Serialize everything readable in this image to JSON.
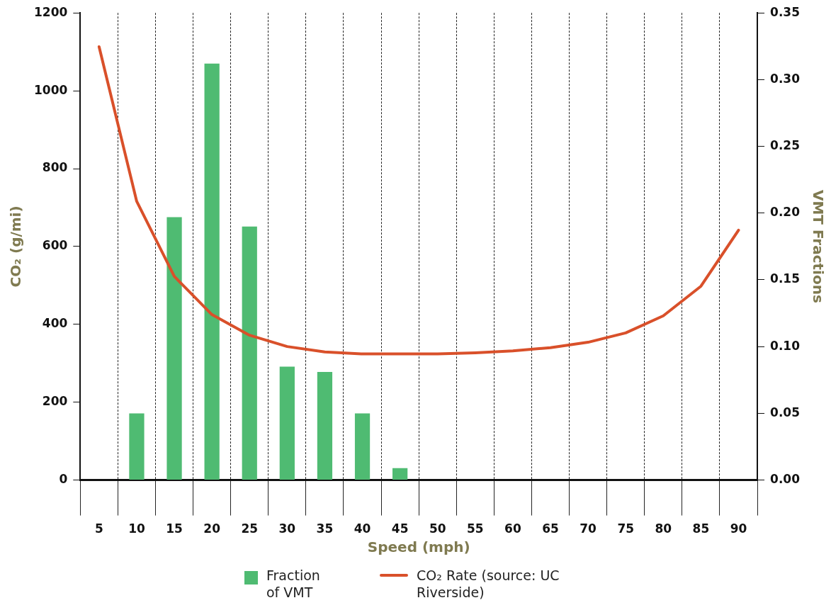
{
  "chart_data": {
    "type": "bar",
    "xlabel": "Speed (mph)",
    "ylabel": "CO₂ (g/mi)",
    "y2label": "VMT Fractions",
    "categories": [
      "5",
      "10",
      "15",
      "20",
      "25",
      "30",
      "35",
      "40",
      "45",
      "50",
      "55",
      "60",
      "65",
      "70",
      "75",
      "80",
      "85",
      "90"
    ],
    "series": [
      {
        "name": "Fraction of VMT",
        "axis": "y2",
        "color": "#4fbb72",
        "values": [
          null,
          0.05,
          0.197,
          0.312,
          0.19,
          0.085,
          0.081,
          0.05,
          0.009,
          null,
          null,
          null,
          null,
          null,
          null,
          null,
          null,
          null
        ]
      },
      {
        "name": "CO₂ Rate (source: UC Riverside)",
        "type": "line",
        "axis": "y",
        "color": "#d9502a",
        "values": [
          1113,
          716,
          523,
          425,
          372,
          343,
          329,
          324,
          324,
          324,
          327,
          332,
          340,
          354,
          378,
          422,
          498,
          642
        ]
      }
    ],
    "ylim": [
      0,
      1200
    ],
    "yticks": [
      0,
      200,
      400,
      600,
      800,
      1000,
      1200
    ],
    "y2lim": [
      0,
      0.35
    ],
    "y2ticks": [
      {
        "value": 0,
        "label": "0.00"
      },
      {
        "value": 0.05,
        "label": "0.05"
      },
      {
        "value": 0.1,
        "label": "0.10"
      },
      {
        "value": 0.15,
        "label": "0.15"
      },
      {
        "value": 0.2,
        "label": "0.20"
      },
      {
        "value": 0.25,
        "label": "0.25"
      },
      {
        "value": 0.3,
        "label": "0.30"
      },
      {
        "value": 0.35,
        "label": "0.35"
      }
    ],
    "grid": "x",
    "legend": "bottom"
  }
}
